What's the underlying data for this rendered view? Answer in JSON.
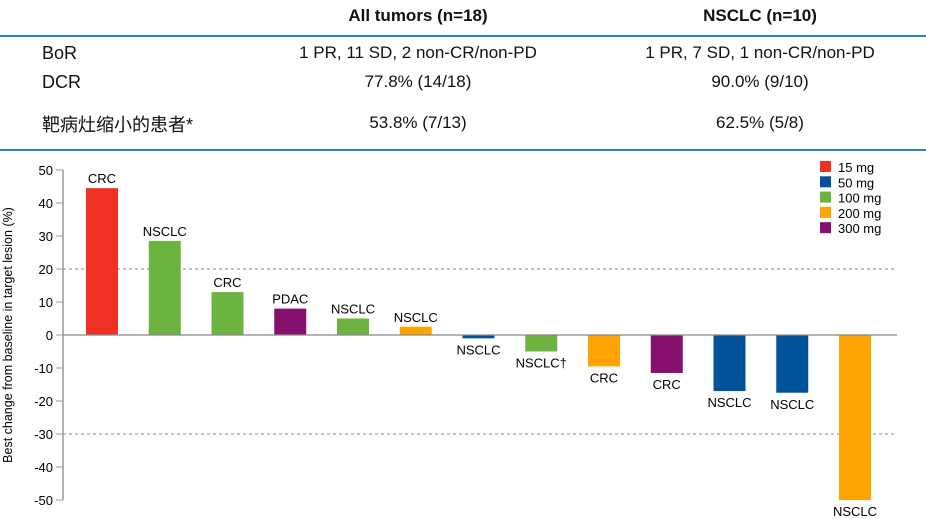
{
  "table": {
    "columns": [
      "",
      "All tumors (n=18)",
      "NSCLC (n=10)"
    ],
    "rows": [
      {
        "label": "BoR",
        "all": "1 PR, 11 SD, 2 non-CR/non-PD",
        "nsclc": "1 PR, 7 SD, 1 non-CR/non-PD"
      },
      {
        "label": "DCR",
        "all": "77.8% (14/18)",
        "nsclc": "90.0% (9/10)"
      },
      {
        "label": "靶病灶缩小的患者*",
        "all": "53.8% (7/13)",
        "nsclc": "62.5% (5/8)"
      }
    ],
    "rule_color": "#2a86c9"
  },
  "chart_data": {
    "type": "bar",
    "title": "",
    "xlabel": "",
    "ylabel": "Best change from baseline in target lesion (%)",
    "ylim": [
      -50,
      50
    ],
    "yticks": [
      50,
      40,
      30,
      20,
      10,
      0,
      -10,
      -20,
      -30,
      -40,
      -50
    ],
    "reference_lines": [
      20,
      -30
    ],
    "grid": false,
    "legend_position": "top-right",
    "legend": [
      {
        "label": "15 mg",
        "color": "#ee3124"
      },
      {
        "label": "50 mg",
        "color": "#00539b"
      },
      {
        "label": "100 mg",
        "color": "#6db33f"
      },
      {
        "label": "200 mg",
        "color": "#ffa400"
      },
      {
        "label": "300 mg",
        "color": "#85106e"
      }
    ],
    "bars": [
      {
        "label": "CRC",
        "value": 44.5,
        "dose": "15 mg"
      },
      {
        "label": "NSCLC",
        "value": 28.5,
        "dose": "100 mg"
      },
      {
        "label": "CRC",
        "value": 13,
        "dose": "100 mg"
      },
      {
        "label": "PDAC",
        "value": 8,
        "dose": "300 mg"
      },
      {
        "label": "NSCLC",
        "value": 5,
        "dose": "100 mg"
      },
      {
        "label": "NSCLC",
        "value": 2.5,
        "dose": "200 mg"
      },
      {
        "label": "NSCLC",
        "value": -1,
        "dose": "50 mg"
      },
      {
        "label": "NSCLC†",
        "value": -5,
        "dose": "100 mg"
      },
      {
        "label": "CRC",
        "value": -9.5,
        "dose": "200 mg"
      },
      {
        "label": "CRC",
        "value": -11.5,
        "dose": "300 mg"
      },
      {
        "label": "NSCLC",
        "value": -17,
        "dose": "50 mg"
      },
      {
        "label": "NSCLC",
        "value": -17.5,
        "dose": "50 mg"
      },
      {
        "label": "NSCLC",
        "value": -50,
        "dose": "200 mg"
      }
    ]
  }
}
